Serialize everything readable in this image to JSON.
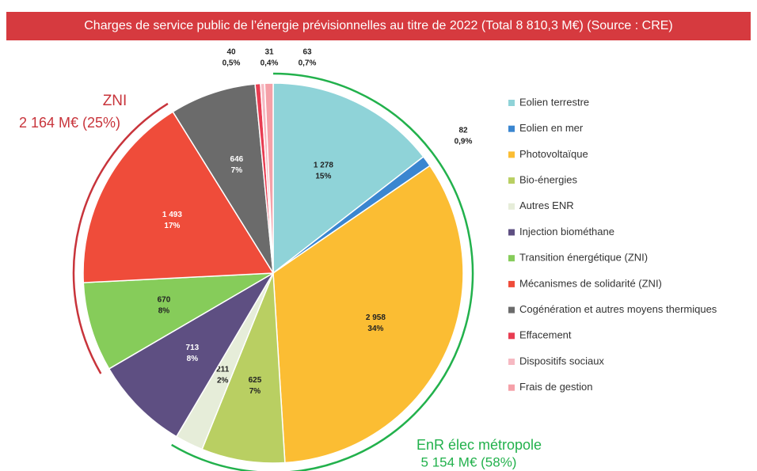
{
  "chart_data": {
    "type": "pie",
    "title": "Charges de service public de l’énergie prévisionnelles au titre de 2022 (Total 8 810,3 M€) (Source : CRE)",
    "categories": [
      "Eolien terrestre",
      "Eolien en mer",
      "Photovoltaïque",
      "Bio-énergies",
      "Autres ENR",
      "Injection biométhane",
      "Transition énergétique (ZNI)",
      "Mécanismes de solidarité (ZNI)",
      "Cogénération et autres moyens thermiques",
      "Effacement",
      "Dispositifs sociaux",
      "Frais de gestion"
    ],
    "values": [
      1278,
      82,
      2958,
      625,
      211,
      713,
      670,
      1493,
      646,
      40,
      31,
      63
    ],
    "value_labels": [
      "1 278",
      "82",
      "2 958",
      "625",
      "211",
      "713",
      "670",
      "1 493",
      "646",
      "40",
      "31",
      "63"
    ],
    "percents": [
      15,
      0.9,
      34,
      7,
      2,
      8,
      8,
      17,
      7,
      0.5,
      0.4,
      0.7
    ],
    "percent_labels": [
      "15%",
      "0,9%",
      "34%",
      "7%",
      "2%",
      "8%",
      "8%",
      "17%",
      "7%",
      "0,5%",
      "0,4%",
      "0,7%"
    ],
    "colors": [
      "#8fd3d8",
      "#3a86d0",
      "#fbbd33",
      "#b9cf62",
      "#e6edd9",
      "#5e4f82",
      "#86cc5a",
      "#ef4c3a",
      "#6b6b6b",
      "#e83d52",
      "#f6b9c2",
      "#f5a0a8"
    ],
    "annotations": [
      {
        "title": "ZNI",
        "text": "2 164 M€ (25%)",
        "color": "#c8343b"
      },
      {
        "title": "EnR élec métropole",
        "text": "5 154 M€ (58%)",
        "color": "#22b14c"
      }
    ],
    "legend": "right"
  }
}
